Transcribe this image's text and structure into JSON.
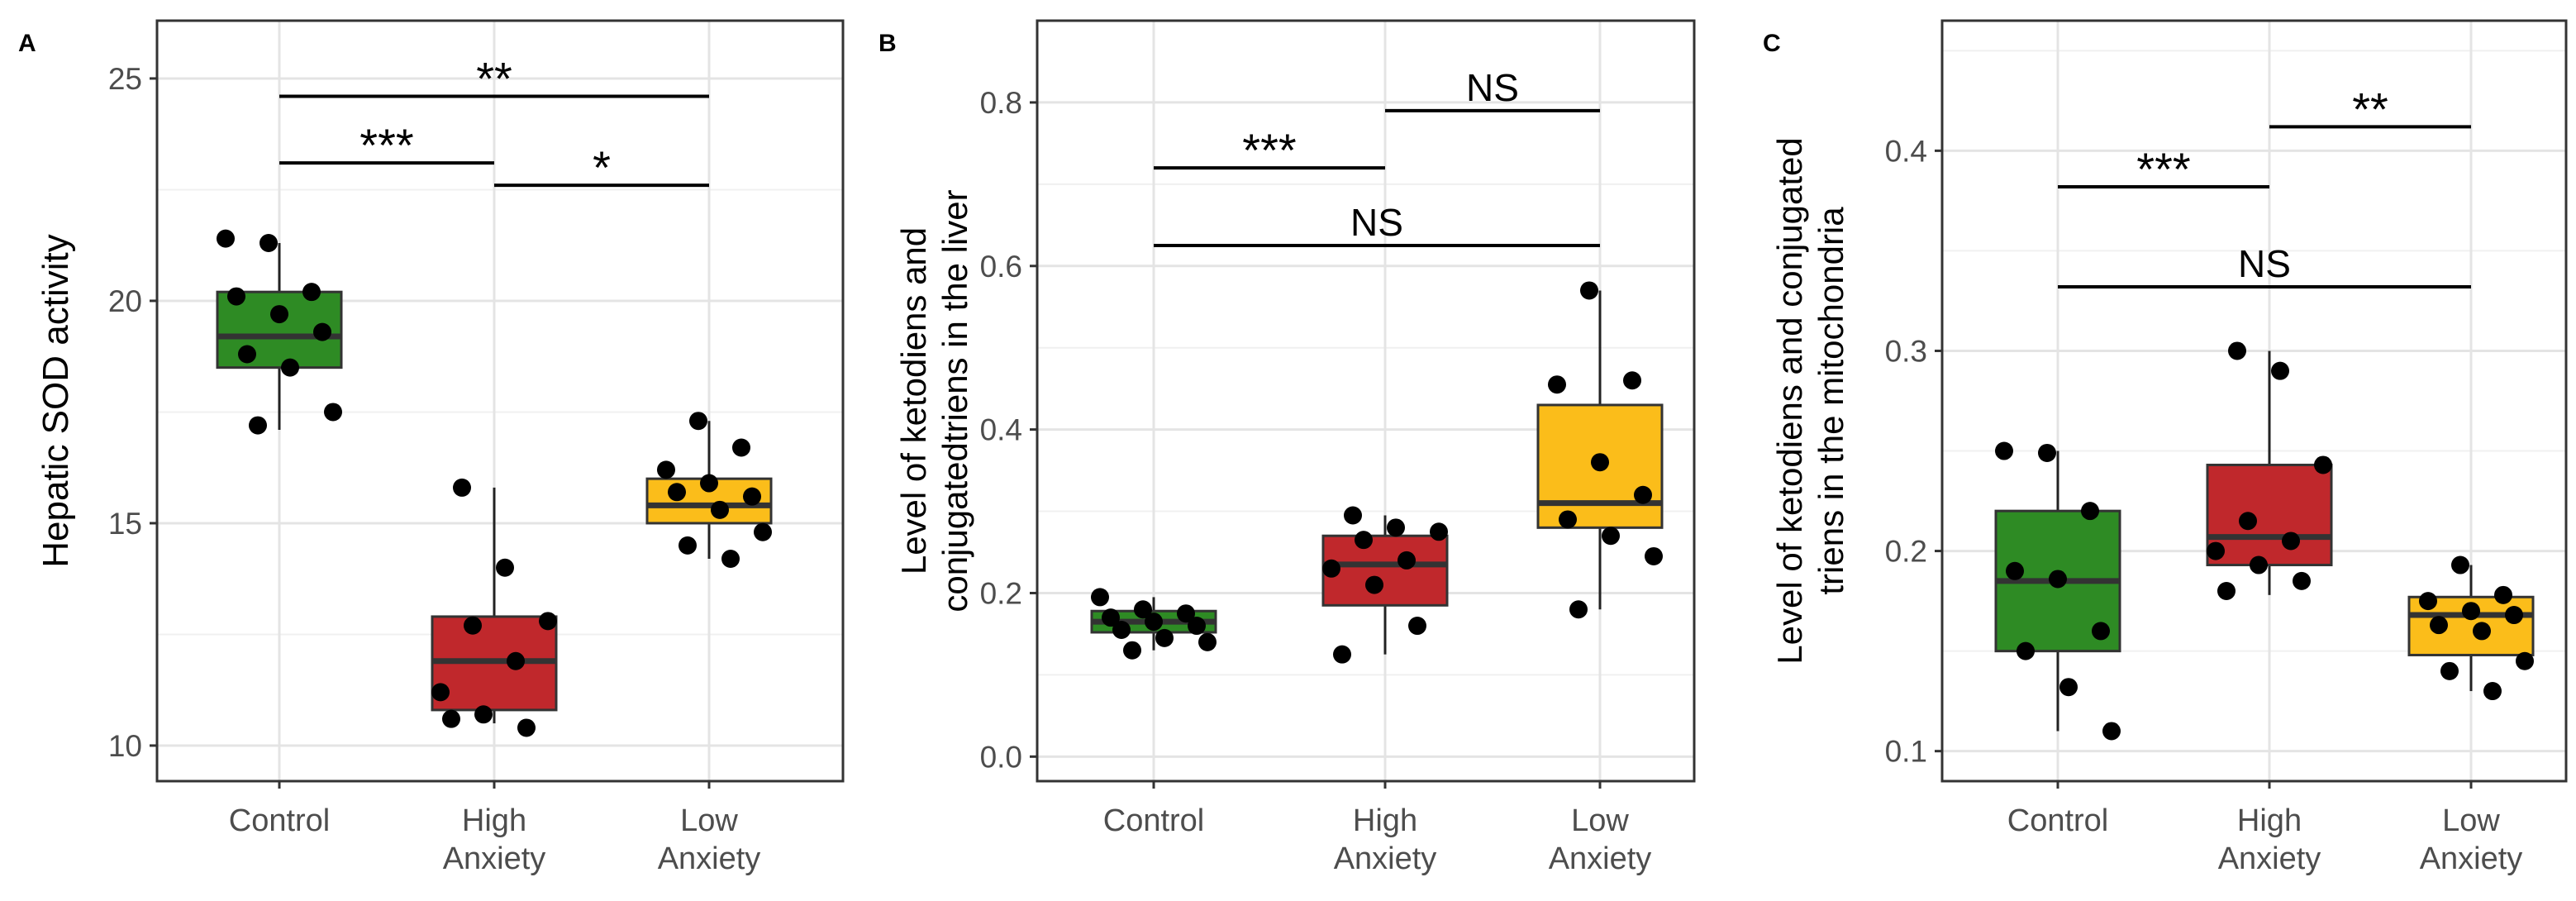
{
  "chart_data": [
    {
      "panel": "A",
      "type": "boxplot",
      "ylabel": "Hepatic SOD activity",
      "ylim": [
        9.2,
        26.3
      ],
      "yticks": [
        10,
        15,
        20,
        25
      ],
      "ytick_labels": [
        "10",
        "15",
        "20",
        "25"
      ],
      "categories": [
        [
          "Control"
        ],
        [
          "High",
          "Anxiety"
        ],
        [
          "Low",
          "Anxiety"
        ]
      ],
      "colors": [
        "#2e8b24",
        "#c0282c",
        "#fbbd1a"
      ],
      "grid": true,
      "boxes": [
        {
          "whisker_low": 17.1,
          "q1": 18.5,
          "median": 19.2,
          "q3": 20.2,
          "whisker_high": 21.3
        },
        {
          "whisker_low": 10.5,
          "q1": 10.8,
          "median": 11.9,
          "q3": 12.9,
          "whisker_high": 15.8
        },
        {
          "whisker_low": 14.2,
          "q1": 15.0,
          "median": 15.4,
          "q3": 16.0,
          "whisker_high": 17.3
        }
      ],
      "points": [
        [
          21.4,
          21.3,
          20.2,
          20.1,
          19.7,
          19.3,
          18.8,
          18.5,
          17.5,
          17.2
        ],
        [
          15.8,
          14.0,
          12.8,
          12.7,
          11.9,
          11.2,
          10.7,
          10.4,
          10.6
        ],
        [
          17.3,
          16.7,
          16.2,
          15.9,
          15.6,
          15.7,
          15.3,
          14.8,
          14.5,
          14.2
        ]
      ],
      "significance": [
        {
          "from": 0,
          "to": 2,
          "y": 24.6,
          "label": "**"
        },
        {
          "from": 0,
          "to": 1,
          "y": 23.1,
          "label": "***"
        },
        {
          "from": 1,
          "to": 2,
          "y": 22.6,
          "label": "*"
        }
      ]
    },
    {
      "panel": "B",
      "type": "boxplot",
      "ylabel": [
        "Level of ketodiens and",
        "conjugatedtriens in the liver"
      ],
      "ylim": [
        -0.03,
        0.9
      ],
      "yticks": [
        0.0,
        0.2,
        0.4,
        0.6,
        0.8
      ],
      "ytick_labels": [
        "0.0",
        "0.2",
        "0.4",
        "0.6",
        "0.8"
      ],
      "categories": [
        [
          "Control"
        ],
        [
          "High",
          "Anxiety"
        ],
        [
          "Low",
          "Anxiety"
        ]
      ],
      "colors": [
        "#2e8b24",
        "#c0282c",
        "#fbbd1a"
      ],
      "grid": true,
      "boxes": [
        {
          "whisker_low": 0.13,
          "q1": 0.152,
          "median": 0.165,
          "q3": 0.178,
          "whisker_high": 0.195
        },
        {
          "whisker_low": 0.125,
          "q1": 0.185,
          "median": 0.235,
          "q3": 0.27,
          "whisker_high": 0.295
        },
        {
          "whisker_low": 0.18,
          "q1": 0.28,
          "median": 0.31,
          "q3": 0.43,
          "whisker_high": 0.57
        }
      ],
      "points": [
        [
          0.195,
          0.18,
          0.175,
          0.17,
          0.165,
          0.16,
          0.155,
          0.145,
          0.14,
          0.13
        ],
        [
          0.295,
          0.28,
          0.275,
          0.265,
          0.24,
          0.23,
          0.21,
          0.16,
          0.125
        ],
        [
          0.57,
          0.46,
          0.455,
          0.36,
          0.32,
          0.29,
          0.27,
          0.245,
          0.18
        ]
      ],
      "significance": [
        {
          "from": 0,
          "to": 1,
          "y": 0.72,
          "label": "***"
        },
        {
          "from": 1,
          "to": 2,
          "y": 0.79,
          "label": "NS"
        },
        {
          "from": 0,
          "to": 2,
          "y": 0.625,
          "label": "NS"
        }
      ]
    },
    {
      "panel": "C",
      "type": "boxplot",
      "ylabel": [
        "Level of ketodiens and conjugated",
        "triens in the mitochondria"
      ],
      "ylim": [
        0.085,
        0.465
      ],
      "yticks": [
        0.1,
        0.2,
        0.3,
        0.4
      ],
      "ytick_labels": [
        "0.1",
        "0.2",
        "0.3",
        "0.4"
      ],
      "categories": [
        [
          "Control"
        ],
        [
          "High",
          "Anxiety"
        ],
        [
          "Low",
          "Anxiety"
        ]
      ],
      "colors": [
        "#2e8b24",
        "#c0282c",
        "#fbbd1a"
      ],
      "grid": true,
      "boxes": [
        {
          "whisker_low": 0.11,
          "q1": 0.15,
          "median": 0.185,
          "q3": 0.22,
          "whisker_high": 0.25
        },
        {
          "whisker_low": 0.178,
          "q1": 0.193,
          "median": 0.207,
          "q3": 0.243,
          "whisker_high": 0.3
        },
        {
          "whisker_low": 0.13,
          "q1": 0.148,
          "median": 0.168,
          "q3": 0.177,
          "whisker_high": 0.193
        }
      ],
      "points": [
        [
          0.25,
          0.249,
          0.22,
          0.19,
          0.186,
          0.16,
          0.15,
          0.132,
          0.11
        ],
        [
          0.3,
          0.29,
          0.243,
          0.215,
          0.205,
          0.2,
          0.193,
          0.185,
          0.18
        ],
        [
          0.193,
          0.178,
          0.175,
          0.17,
          0.168,
          0.163,
          0.16,
          0.145,
          0.14,
          0.13
        ]
      ],
      "significance": [
        {
          "from": 0,
          "to": 1,
          "y": 0.382,
          "label": "***"
        },
        {
          "from": 1,
          "to": 2,
          "y": 0.412,
          "label": "**"
        },
        {
          "from": 0,
          "to": 2,
          "y": 0.332,
          "label": "NS"
        }
      ]
    }
  ]
}
